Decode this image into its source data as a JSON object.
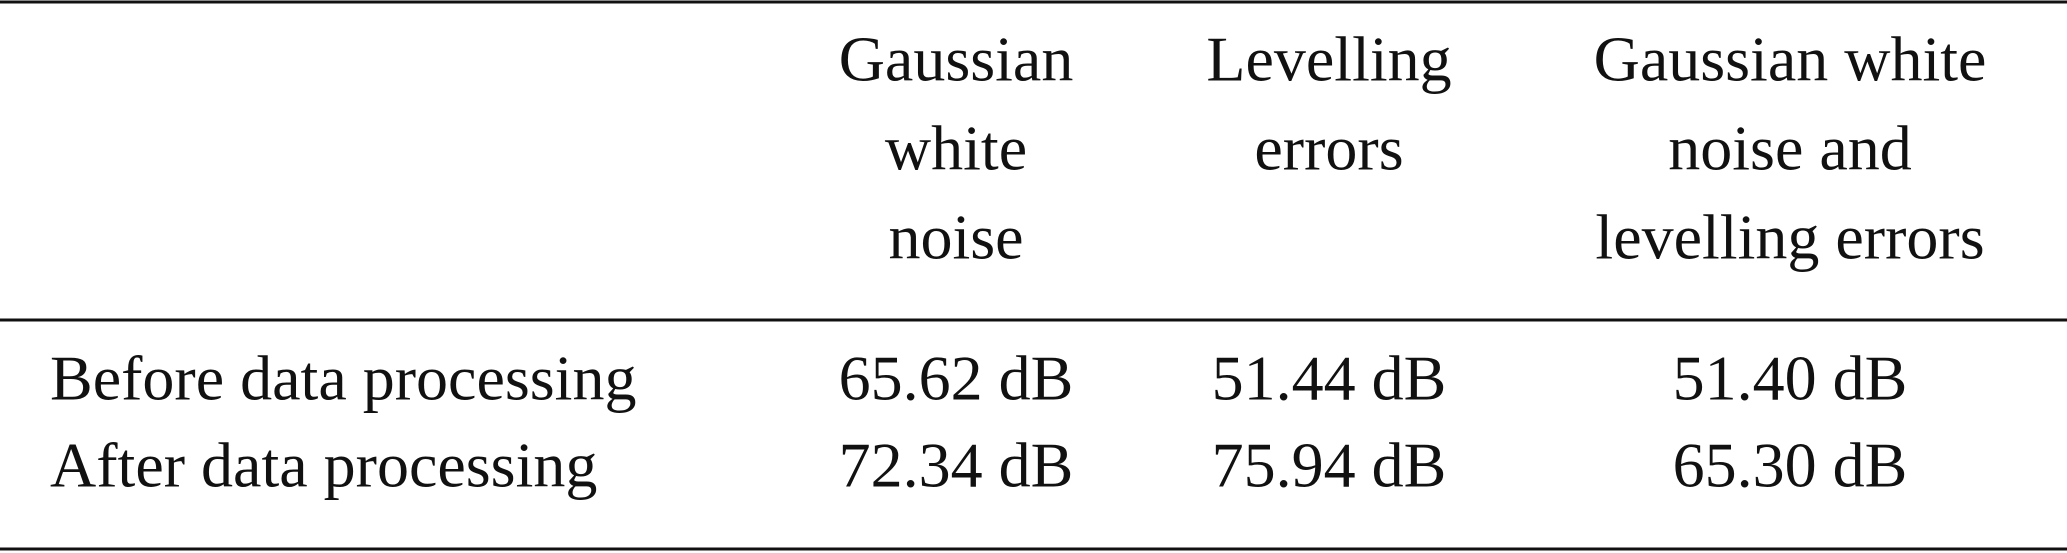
{
  "table": {
    "header": [
      [
        "Gaussian",
        "white",
        "noise"
      ],
      [
        "Levelling",
        "errors"
      ],
      [
        "Gaussian white",
        "noise and",
        "levelling errors"
      ]
    ],
    "rows": [
      [
        "Before data processing",
        "65.62 dB",
        "51.44 dB",
        "51.40 dB"
      ],
      [
        "After data processing",
        "72.34 dB",
        "75.94 dB",
        "65.30 dB"
      ]
    ]
  }
}
